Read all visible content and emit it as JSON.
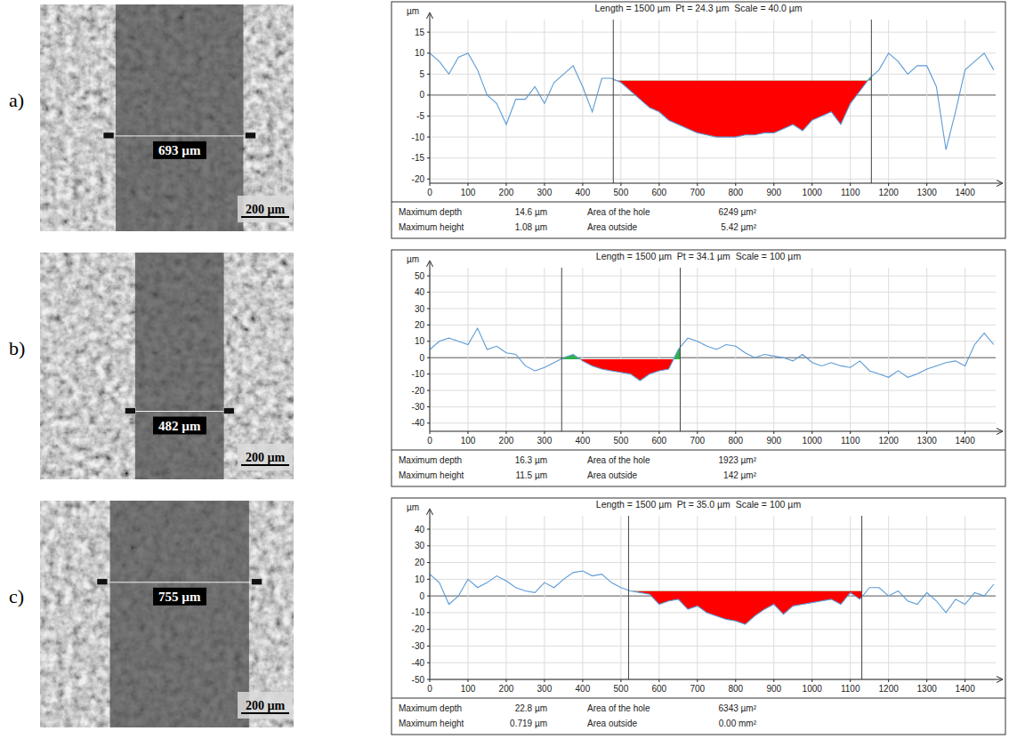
{
  "chart_data": [
    {
      "type": "line",
      "panel_label": "a)",
      "image_measurement": "693 µm",
      "scale_bar": "200 µm",
      "title": "Length = 1500 µm  Pt = 24.3 µm  Scale = 40.0 µm",
      "y_label": "µm",
      "x": [
        0,
        25,
        50,
        75,
        100,
        125,
        150,
        175,
        200,
        225,
        250,
        275,
        300,
        325,
        350,
        375,
        400,
        425,
        450,
        475,
        500,
        525,
        550,
        575,
        600,
        625,
        650,
        675,
        700,
        725,
        750,
        775,
        800,
        825,
        850,
        875,
        900,
        925,
        950,
        975,
        1000,
        1025,
        1050,
        1075,
        1100,
        1125,
        1150,
        1175,
        1200,
        1225,
        1250,
        1275,
        1300,
        1325,
        1350,
        1375,
        1400,
        1425,
        1450,
        1475
      ],
      "values": [
        10,
        8,
        5,
        9,
        10,
        6,
        0,
        -2,
        -7,
        -1,
        -1,
        2,
        -2,
        3,
        5,
        7,
        2,
        -4,
        4,
        4,
        3,
        1,
        -1,
        -3,
        -4,
        -6,
        -7,
        -8,
        -9,
        -9.5,
        -10,
        -10,
        -10,
        -9.5,
        -9.5,
        -9,
        -9,
        -8,
        -7,
        -8.5,
        -6,
        -5,
        -4,
        -7,
        -2,
        1,
        4,
        6,
        10,
        8,
        5,
        7,
        7,
        2,
        -13,
        -4,
        6,
        8,
        10,
        6
      ],
      "color": "#5b9bd5",
      "xlim": [
        0,
        1480
      ],
      "xticks": [
        0,
        100,
        200,
        300,
        400,
        500,
        600,
        700,
        800,
        900,
        1000,
        1100,
        1200,
        1300,
        1400
      ],
      "ylim": [
        -21,
        18
      ],
      "yticks": [
        -20,
        -15,
        -10,
        -5,
        0,
        5,
        10,
        15
      ],
      "grid": true,
      "hole_range": [
        480,
        1155
      ],
      "hole_level": 3.5,
      "stats": [
        [
          "Maximum depth",
          "14.6 µm",
          "Area of the hole",
          "6249 µm²"
        ],
        [
          "Maximum height",
          "1.08 µm",
          "Area outside",
          "5.42 µm²"
        ]
      ]
    },
    {
      "type": "line",
      "panel_label": "b)",
      "image_measurement": "482 µm",
      "scale_bar": "200 µm",
      "title": "Length = 1500 µm  Pt = 34.1 µm  Scale = 100 µm",
      "y_label": "µm",
      "x": [
        0,
        25,
        50,
        75,
        100,
        125,
        150,
        175,
        200,
        225,
        250,
        275,
        300,
        325,
        350,
        375,
        400,
        425,
        450,
        475,
        500,
        525,
        550,
        575,
        600,
        625,
        650,
        675,
        700,
        725,
        750,
        775,
        800,
        825,
        850,
        875,
        900,
        925,
        950,
        975,
        1000,
        1025,
        1050,
        1075,
        1100,
        1125,
        1150,
        1175,
        1200,
        1225,
        1250,
        1275,
        1300,
        1325,
        1350,
        1375,
        1400,
        1425,
        1450,
        1475
      ],
      "values": [
        5,
        10,
        12,
        10,
        8,
        18,
        5,
        7,
        3,
        2,
        -5,
        -8,
        -6,
        -3,
        0,
        2,
        -2,
        -5,
        -7,
        -8,
        -9,
        -10,
        -14,
        -10,
        -8,
        -7,
        5,
        12,
        10,
        7,
        5,
        8,
        7,
        3,
        0,
        2,
        1,
        0,
        -2,
        2,
        -3,
        -5,
        -3,
        -5,
        -6,
        -2,
        -8,
        -10,
        -12,
        -8,
        -12,
        -10,
        -7,
        -5,
        -3,
        -2,
        -5,
        8,
        15,
        8
      ],
      "color": "#5b9bd5",
      "xlim": [
        0,
        1480
      ],
      "xticks": [
        0,
        100,
        200,
        300,
        400,
        500,
        600,
        700,
        800,
        900,
        1000,
        1100,
        1200,
        1300,
        1400
      ],
      "ylim": [
        -45,
        55
      ],
      "yticks": [
        -40,
        -30,
        -20,
        -10,
        0,
        10,
        20,
        30,
        40,
        50
      ],
      "grid": true,
      "hole_range": [
        345,
        655
      ],
      "hole_level": -1,
      "stats": [
        [
          "Maximum depth",
          "16.3 µm",
          "Area of the hole",
          "1923 µm²"
        ],
        [
          "Maximum height",
          "11.5 µm",
          "Area outside",
          "142 µm²"
        ]
      ]
    },
    {
      "type": "line",
      "panel_label": "c)",
      "image_measurement": "755 µm",
      "scale_bar": "200 µm",
      "title": "Length = 1500 µm  Pt = 35.0 µm  Scale = 100 µm",
      "y_label": "µm",
      "x": [
        0,
        25,
        50,
        75,
        100,
        125,
        150,
        175,
        200,
        225,
        250,
        275,
        300,
        325,
        350,
        375,
        400,
        425,
        450,
        475,
        500,
        525,
        550,
        575,
        600,
        625,
        650,
        675,
        700,
        725,
        750,
        775,
        800,
        825,
        850,
        875,
        900,
        925,
        950,
        975,
        1000,
        1025,
        1050,
        1075,
        1100,
        1125,
        1150,
        1175,
        1200,
        1225,
        1250,
        1275,
        1300,
        1325,
        1350,
        1375,
        1400,
        1425,
        1450,
        1475
      ],
      "values": [
        13,
        8,
        -5,
        0,
        10,
        5,
        8,
        12,
        9,
        5,
        3,
        2,
        8,
        5,
        10,
        14,
        15,
        12,
        13,
        8,
        5,
        3,
        2,
        1,
        -5,
        -3,
        -2,
        -8,
        -6,
        -10,
        -12,
        -14,
        -15,
        -17,
        -12,
        -8,
        -5,
        -11,
        -6,
        -5,
        -4,
        -3,
        -2,
        -5,
        2,
        -2,
        5,
        5,
        0,
        3,
        -3,
        -5,
        2,
        -3,
        -10,
        -2,
        -5,
        2,
        0,
        7
      ],
      "color": "#5b9bd5",
      "xlim": [
        0,
        1480
      ],
      "xticks": [
        0,
        100,
        200,
        300,
        400,
        500,
        600,
        700,
        800,
        900,
        1000,
        1100,
        1200,
        1300,
        1400
      ],
      "ylim": [
        -50,
        48
      ],
      "yticks": [
        -50,
        -40,
        -30,
        -20,
        -10,
        0,
        10,
        20,
        30,
        40
      ],
      "grid": true,
      "hole_range": [
        520,
        1130
      ],
      "hole_level": 3,
      "stats": [
        [
          "Maximum depth",
          "22.8 µm",
          "Area of the hole",
          "6343 µm²"
        ],
        [
          "Maximum height",
          "0.719 µm",
          "Area outside",
          "0.00 mm²"
        ]
      ]
    }
  ]
}
